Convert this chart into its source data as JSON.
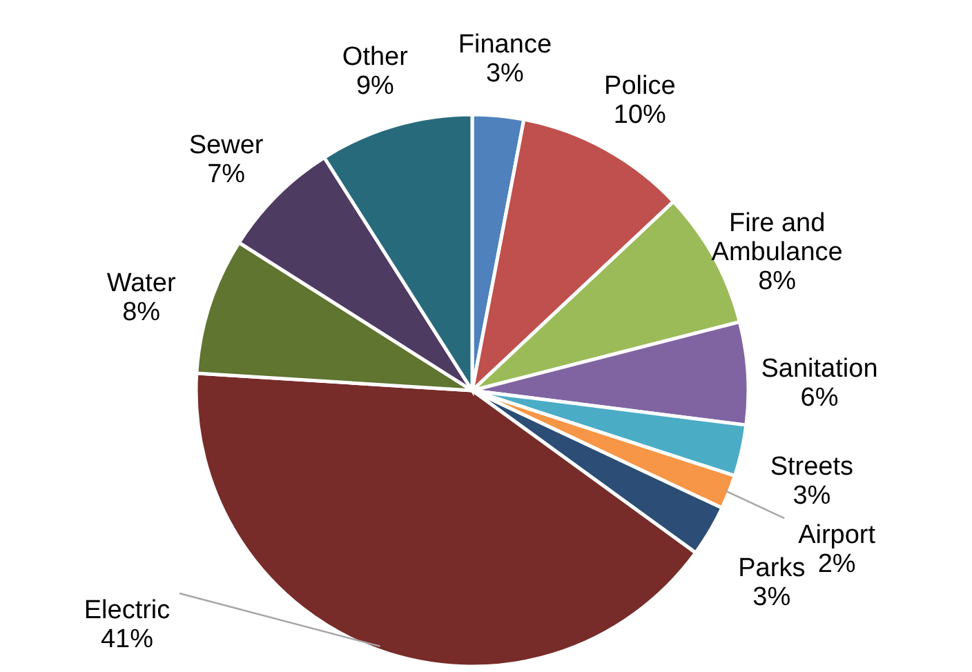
{
  "chart_data": {
    "type": "pie",
    "categories": [
      "Finance",
      "Police",
      "Fire and Ambulance",
      "Sanitation",
      "Streets",
      "Airport",
      "Parks",
      "Electric",
      "Water",
      "Sewer",
      "Other"
    ],
    "values": [
      3,
      10,
      8,
      6,
      3,
      2,
      3,
      41,
      8,
      7,
      9
    ],
    "colors": [
      "#4f81bd",
      "#c0504d",
      "#9bbb59",
      "#8064a2",
      "#4bacc6",
      "#f79646",
      "#2c4d75",
      "#772c2a",
      "#5f7530",
      "#4d3b62",
      "#276a7c"
    ],
    "value_labels": [
      "3%",
      "10%",
      "8%",
      "6%",
      "3%",
      "2%",
      "3%",
      "41%",
      "8%",
      "7%",
      "9%"
    ]
  }
}
